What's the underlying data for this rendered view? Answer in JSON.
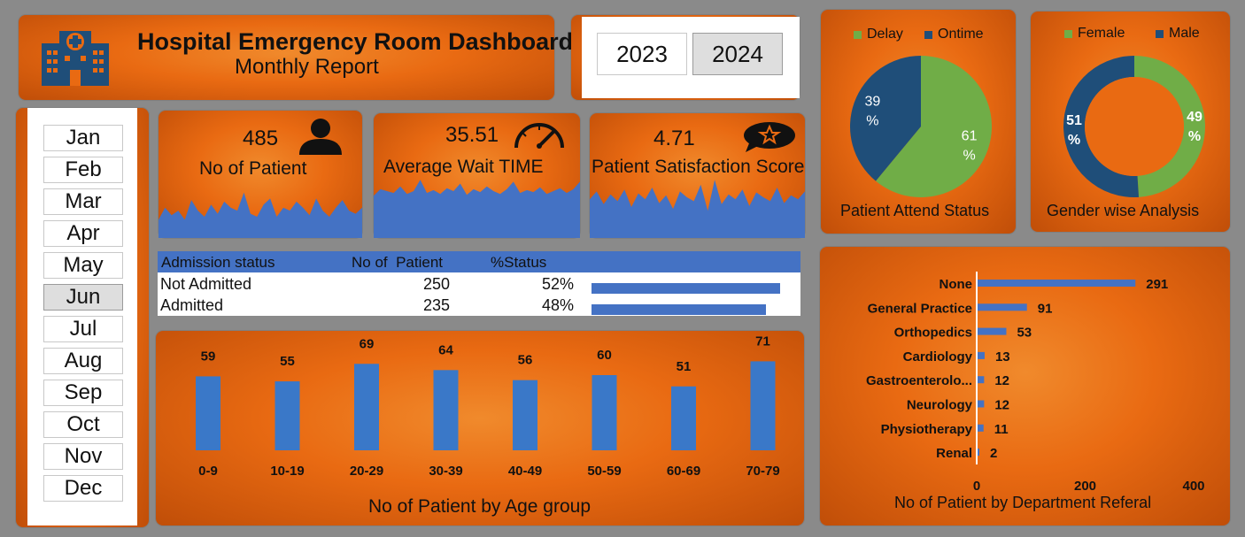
{
  "header": {
    "title": "Hospital Emergency Room Dashboard",
    "subtitle": "Monthly Report",
    "icon": "hospital-icon"
  },
  "years": [
    {
      "label": "2023",
      "selected": false
    },
    {
      "label": "2024",
      "selected": true
    }
  ],
  "months": [
    {
      "label": "Jan",
      "selected": false
    },
    {
      "label": "Feb",
      "selected": false
    },
    {
      "label": "Mar",
      "selected": false
    },
    {
      "label": "Apr",
      "selected": false
    },
    {
      "label": "May",
      "selected": false
    },
    {
      "label": "Jun",
      "selected": true
    },
    {
      "label": "Jul",
      "selected": false
    },
    {
      "label": "Aug",
      "selected": false
    },
    {
      "label": "Sep",
      "selected": false
    },
    {
      "label": "Oct",
      "selected": false
    },
    {
      "label": "Nov",
      "selected": false
    },
    {
      "label": "Dec",
      "selected": false
    }
  ],
  "kpis": [
    {
      "value": "485",
      "label": "No of Patient",
      "icon": "person-icon"
    },
    {
      "value": "35.51",
      "label": "Average Wait TIME",
      "icon": "speedometer-icon"
    },
    {
      "value": "4.71",
      "label": "Patient Satisfaction Score",
      "icon": "star-speech-icon"
    }
  ],
  "admission_table": {
    "headers": [
      "Admission status",
      "No of  Patient",
      "%Status"
    ],
    "rows": [
      {
        "status": "Not Admitted",
        "count": "250",
        "pct": "52%",
        "fraction": 0.52
      },
      {
        "status": "Admitted",
        "count": "235",
        "pct": "48%",
        "fraction": 0.48
      }
    ]
  },
  "colors": {
    "orange": "#e96a12",
    "blue_bar": "#4472c4",
    "green": "#70ad47",
    "navy": "#1f4e79"
  },
  "chart_data": [
    {
      "type": "area",
      "y": [
        12,
        20,
        15,
        18,
        12,
        25,
        18,
        14,
        22,
        16,
        24,
        20,
        18,
        30,
        16,
        14,
        22,
        26,
        14,
        20,
        18,
        24,
        20,
        15,
        26,
        18,
        14,
        20,
        25,
        18,
        16,
        20
      ]
    },
    {
      "type": "area",
      "y": [
        45,
        52,
        50,
        48,
        55,
        47,
        50,
        62,
        48,
        51,
        47,
        53,
        50,
        58,
        46,
        52,
        49,
        55,
        50,
        47,
        52,
        60,
        48,
        51,
        49,
        54,
        47,
        50,
        53,
        48,
        52,
        60
      ]
    },
    {
      "type": "area",
      "y": [
        40,
        48,
        35,
        45,
        38,
        50,
        32,
        46,
        40,
        52,
        36,
        44,
        30,
        48,
        42,
        38,
        55,
        28,
        60,
        35,
        45,
        40,
        50,
        33,
        47,
        42,
        38,
        52,
        36,
        44,
        40,
        48
      ]
    },
    {
      "type": "pie",
      "title": "Patient Attend Status",
      "legend": [
        {
          "name": "Delay",
          "color": "#70ad47"
        },
        {
          "name": "Ontime",
          "color": "#1f4e79"
        }
      ],
      "slices": [
        {
          "name": "Delay",
          "value": 61,
          "label": "61\n%",
          "color": "#70ad47"
        },
        {
          "name": "Ontime",
          "value": 39,
          "label": "39\n%",
          "color": "#1f4e79"
        }
      ]
    },
    {
      "type": "pie",
      "subtype": "donut",
      "title": "Gender wise Analysis",
      "legend": [
        {
          "name": "Female",
          "color": "#70ad47"
        },
        {
          "name": "Male",
          "color": "#1f4e79"
        }
      ],
      "slices": [
        {
          "name": "Female",
          "value": 49,
          "label": "49\n%",
          "color": "#70ad47"
        },
        {
          "name": "Male",
          "value": 51,
          "label": "51\n%",
          "color": "#1f4e79"
        }
      ]
    },
    {
      "type": "bar",
      "title": "No of Patient by Age group",
      "categories": [
        "0-9",
        "10-19",
        "20-29",
        "30-39",
        "40-49",
        "50-59",
        "60-69",
        "70-79"
      ],
      "values": [
        59,
        55,
        69,
        64,
        56,
        60,
        51,
        71
      ]
    },
    {
      "type": "bar",
      "orientation": "horizontal",
      "title": "No of Patient by Department Referal",
      "categories": [
        "None",
        "General Practice",
        "Orthopedics",
        "Cardiology",
        "Gastroenterolo...",
        "Neurology",
        "Physiotherapy",
        "Renal"
      ],
      "values": [
        291,
        91,
        53,
        13,
        12,
        12,
        11,
        2
      ],
      "xlim": [
        0,
        400
      ],
      "xticks": [
        "0",
        "200",
        "400"
      ]
    }
  ]
}
